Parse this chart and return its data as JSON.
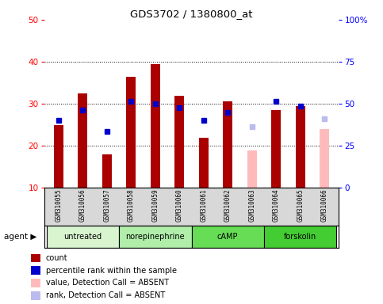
{
  "title": "GDS3702 / 1380800_at",
  "samples": [
    "GSM310055",
    "GSM310056",
    "GSM310057",
    "GSM310058",
    "GSM310059",
    "GSM310060",
    "GSM310061",
    "GSM310062",
    "GSM310063",
    "GSM310064",
    "GSM310065",
    "GSM310066"
  ],
  "count_values": [
    25,
    32.5,
    18,
    36.5,
    39.5,
    32,
    22,
    30.5,
    null,
    28.5,
    29.5,
    null
  ],
  "count_absent": [
    null,
    null,
    null,
    null,
    null,
    null,
    null,
    null,
    19,
    null,
    null,
    24
  ],
  "rank_values": [
    26,
    28.5,
    23.5,
    30.5,
    30,
    29,
    26,
    28,
    null,
    30.5,
    29.5,
    null
  ],
  "rank_absent": [
    null,
    null,
    null,
    null,
    null,
    null,
    null,
    null,
    24.5,
    null,
    null,
    26.5
  ],
  "groups": [
    {
      "label": "untreated",
      "indices": [
        0,
        1,
        2
      ],
      "color": "#d8f5d0"
    },
    {
      "label": "norepinephrine",
      "indices": [
        3,
        4,
        5
      ],
      "color": "#b0eeaa"
    },
    {
      "label": "cAMP",
      "indices": [
        6,
        7,
        8
      ],
      "color": "#66dd55"
    },
    {
      "label": "forskolin",
      "indices": [
        9,
        10,
        11
      ],
      "color": "#44cc33"
    }
  ],
  "ylim_left": [
    10,
    50
  ],
  "ylim_right": [
    0,
    100
  ],
  "yticks_left": [
    10,
    20,
    30,
    40,
    50
  ],
  "yticks_right": [
    0,
    25,
    50,
    75,
    100
  ],
  "ytick_labels_right": [
    "0",
    "25",
    "50",
    "75",
    "100%"
  ],
  "count_color": "#aa0000",
  "rank_color": "#0000cc",
  "absent_count_color": "#ffbbbb",
  "absent_rank_color": "#bbbbee",
  "bg_color": "#d8d8d8",
  "plot_bg": "#ffffff",
  "bar_bottom": 10,
  "bar_width": 0.4
}
